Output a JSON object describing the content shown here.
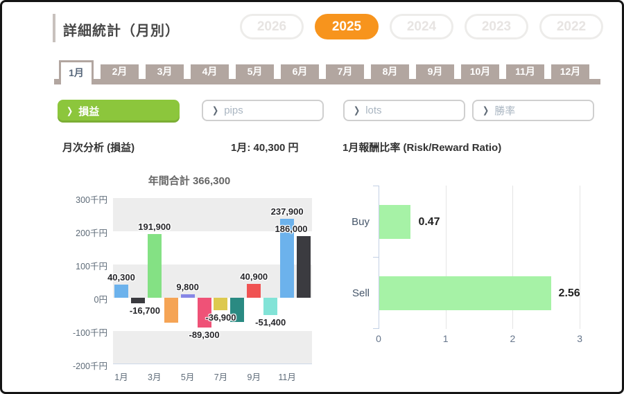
{
  "header": {
    "title": "詳細統計（月別）",
    "years": [
      {
        "label": "2026",
        "active": false
      },
      {
        "label": "2025",
        "active": true
      },
      {
        "label": "2024",
        "active": false
      },
      {
        "label": "2023",
        "active": false
      },
      {
        "label": "2022",
        "active": false
      }
    ]
  },
  "months": {
    "items": [
      "1月",
      "2月",
      "3月",
      "4月",
      "5月",
      "6月",
      "7月",
      "8月",
      "9月",
      "10月",
      "11月",
      "12月"
    ],
    "active": "1月"
  },
  "filters": {
    "chevron": "❯",
    "items": [
      {
        "label": "損益",
        "active": true
      },
      {
        "label": "pips",
        "active": false
      },
      {
        "label": "lots",
        "active": false
      },
      {
        "label": "勝率",
        "active": false
      }
    ]
  },
  "headings": {
    "left": "月次分析 (損益)",
    "center": "1月: 40,300 円",
    "right": "1月報酬比率 (Risk/Reward Ratio)"
  },
  "colors": {
    "accent_orange": "#f7941d",
    "accent_green": "#8cc63c",
    "tab_taupe": "#b2a6a0",
    "band_gray": "#ededed",
    "rr_bar_green": "#a6f2a6"
  },
  "chart_data": [
    {
      "type": "bar",
      "title": "年間合計 366,300",
      "categories": [
        "1月",
        "2月",
        "3月",
        "4月",
        "5月",
        "6月",
        "7月",
        "8月",
        "9月",
        "10月",
        "11月",
        "12月"
      ],
      "values": [
        40300,
        -16700,
        191900,
        -74000,
        9800,
        -89300,
        -36900,
        -72200,
        40900,
        -51400,
        237900,
        186000
      ],
      "data_labels": [
        "40,300",
        "-16,700",
        "191,900",
        "",
        "9,800",
        "-89,300",
        "-36,900",
        "",
        "40,900",
        "-51,400",
        "237,900",
        "186,000"
      ],
      "label_dx": [
        0,
        10,
        0,
        0,
        0,
        0,
        0,
        0,
        0,
        0,
        0,
        -18
      ],
      "bar_colors": [
        "#6cb2ec",
        "#3b3b40",
        "#84e184",
        "#f5a455",
        "#8787e6",
        "#ef5277",
        "#ddc94f",
        "#2a8a82",
        "#f05353",
        "#82e3d7",
        "#6cb2ec",
        "#3b3b40"
      ],
      "y_ticks": [
        "300千円",
        "200千円",
        "100千円",
        "0円",
        "-100千円",
        "-200千円"
      ],
      "x_tick_labels": [
        "1月",
        "3月",
        "5月",
        "7月",
        "9月",
        "11月"
      ],
      "ylim": [
        -200000,
        300000
      ],
      "grid": "horizontal-bands",
      "note": "values for 4月 and 8月 estimated from bar heights; their labels are not shown"
    },
    {
      "type": "bar-horizontal",
      "title": "1月報酬比率 (Risk/Reward Ratio)",
      "categories": [
        "Buy",
        "Sell"
      ],
      "values": [
        0.47,
        2.56
      ],
      "data_labels": [
        "0.47",
        "2.56"
      ],
      "xlim": [
        0,
        3
      ],
      "x_ticks": [
        "0",
        "1",
        "2",
        "3"
      ],
      "grid": "vertical"
    }
  ]
}
